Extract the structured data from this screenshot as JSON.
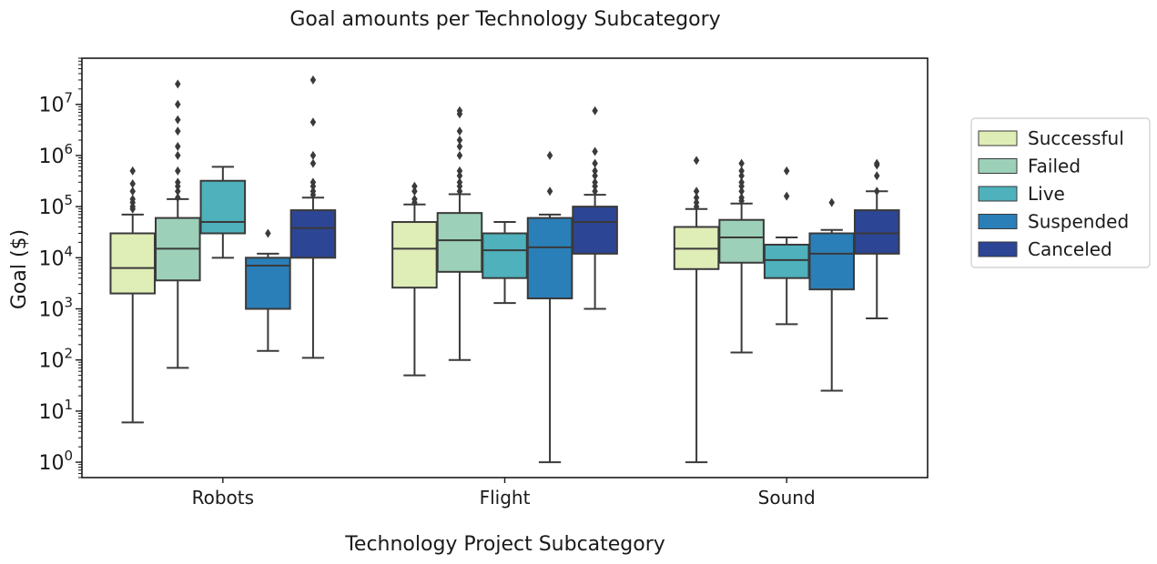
{
  "chart_data": {
    "type": "boxplot",
    "title": "Goal amounts per Technology Subcategory",
    "xlabel": "Technology Project Subcategory",
    "ylabel": "Goal ($)",
    "yscale": "log",
    "ylim": [
      0.5,
      80000000
    ],
    "y_ticks": [
      {
        "value": 1,
        "base": "10",
        "exp": "0"
      },
      {
        "value": 10,
        "base": "10",
        "exp": "1"
      },
      {
        "value": 100,
        "base": "10",
        "exp": "2"
      },
      {
        "value": 1000,
        "base": "10",
        "exp": "3"
      },
      {
        "value": 10000,
        "base": "10",
        "exp": "4"
      },
      {
        "value": 100000,
        "base": "10",
        "exp": "5"
      },
      {
        "value": 1000000,
        "base": "10",
        "exp": "6"
      },
      {
        "value": 10000000,
        "base": "10",
        "exp": "7"
      }
    ],
    "categories": [
      "Robots",
      "Flight",
      "Sound"
    ],
    "series": [
      {
        "name": "Successful",
        "color": "#dfedb6",
        "boxes": [
          {
            "whislo": 6,
            "q1": 2000,
            "med": 6300,
            "q3": 30000,
            "whishi": 70000,
            "fliers": [
              90000,
              100000,
              120000,
              140000,
              200000,
              280000,
              500000
            ]
          },
          {
            "whislo": 50,
            "q1": 2600,
            "med": 15000,
            "q3": 50000,
            "whishi": 110000,
            "fliers": [
              120000,
              140000,
              200000,
              250000
            ]
          },
          {
            "whislo": 1,
            "q1": 6000,
            "med": 15000,
            "q3": 40000,
            "whishi": 90000,
            "fliers": [
              100000,
              120000,
              150000,
              200000,
              800000
            ]
          }
        ]
      },
      {
        "name": "Failed",
        "color": "#9dd0b8",
        "boxes": [
          {
            "whislo": 70,
            "q1": 3600,
            "med": 15000,
            "q3": 60000,
            "whishi": 140000,
            "fliers": [
              150000,
              200000,
              250000,
              300000,
              500000,
              1000000,
              1500000,
              3000000,
              5000000,
              10000000,
              25000000
            ]
          },
          {
            "whislo": 100,
            "q1": 5300,
            "med": 22000,
            "q3": 75000,
            "whishi": 175000,
            "fliers": [
              200000,
              250000,
              300000,
              400000,
              500000,
              1000000,
              1500000,
              2000000,
              3000000,
              6500000,
              7500000
            ]
          },
          {
            "whislo": 140,
            "q1": 8000,
            "med": 25000,
            "q3": 55000,
            "whishi": 115000,
            "fliers": [
              130000,
              150000,
              200000,
              250000,
              300000,
              400000,
              500000,
              700000
            ]
          }
        ]
      },
      {
        "name": "Live",
        "color": "#4eb1bc",
        "boxes": [
          {
            "whislo": 10000,
            "q1": 30000,
            "med": 50000,
            "q3": 320000,
            "whishi": 600000,
            "fliers": []
          },
          {
            "whislo": 1300,
            "q1": 4000,
            "med": 14000,
            "q3": 30000,
            "whishi": 50000,
            "fliers": []
          },
          {
            "whislo": 500,
            "q1": 4000,
            "med": 9000,
            "q3": 18000,
            "whishi": 25000,
            "fliers": [
              160000,
              500000
            ]
          }
        ]
      },
      {
        "name": "Suspended",
        "color": "#2b7fb8",
        "boxes": [
          {
            "whislo": 150,
            "q1": 1000,
            "med": 7000,
            "q3": 10000,
            "whishi": 12000,
            "fliers": [
              30000
            ]
          },
          {
            "whislo": 1,
            "q1": 1600,
            "med": 16000,
            "q3": 60000,
            "whishi": 70000,
            "fliers": [
              200000,
              1000000
            ]
          },
          {
            "whislo": 25,
            "q1": 2400,
            "med": 12000,
            "q3": 30000,
            "whishi": 35000,
            "fliers": [
              120000
            ]
          }
        ]
      },
      {
        "name": "Canceled",
        "color": "#2d4595",
        "boxes": [
          {
            "whislo": 110,
            "q1": 10000,
            "med": 38000,
            "q3": 85000,
            "whishi": 150000,
            "fliers": [
              170000,
              200000,
              250000,
              300000,
              700000,
              1000000,
              4500000,
              30000000
            ]
          },
          {
            "whislo": 1000,
            "q1": 12000,
            "med": 50000,
            "q3": 100000,
            "whishi": 170000,
            "fliers": [
              200000,
              250000,
              300000,
              400000,
              500000,
              700000,
              1200000,
              7500000
            ]
          },
          {
            "whislo": 650,
            "q1": 12000,
            "med": 30000,
            "q3": 85000,
            "whishi": 200000,
            "fliers": [
              200000,
              400000,
              650000,
              700000
            ]
          }
        ]
      }
    ],
    "legend_position": "right"
  }
}
